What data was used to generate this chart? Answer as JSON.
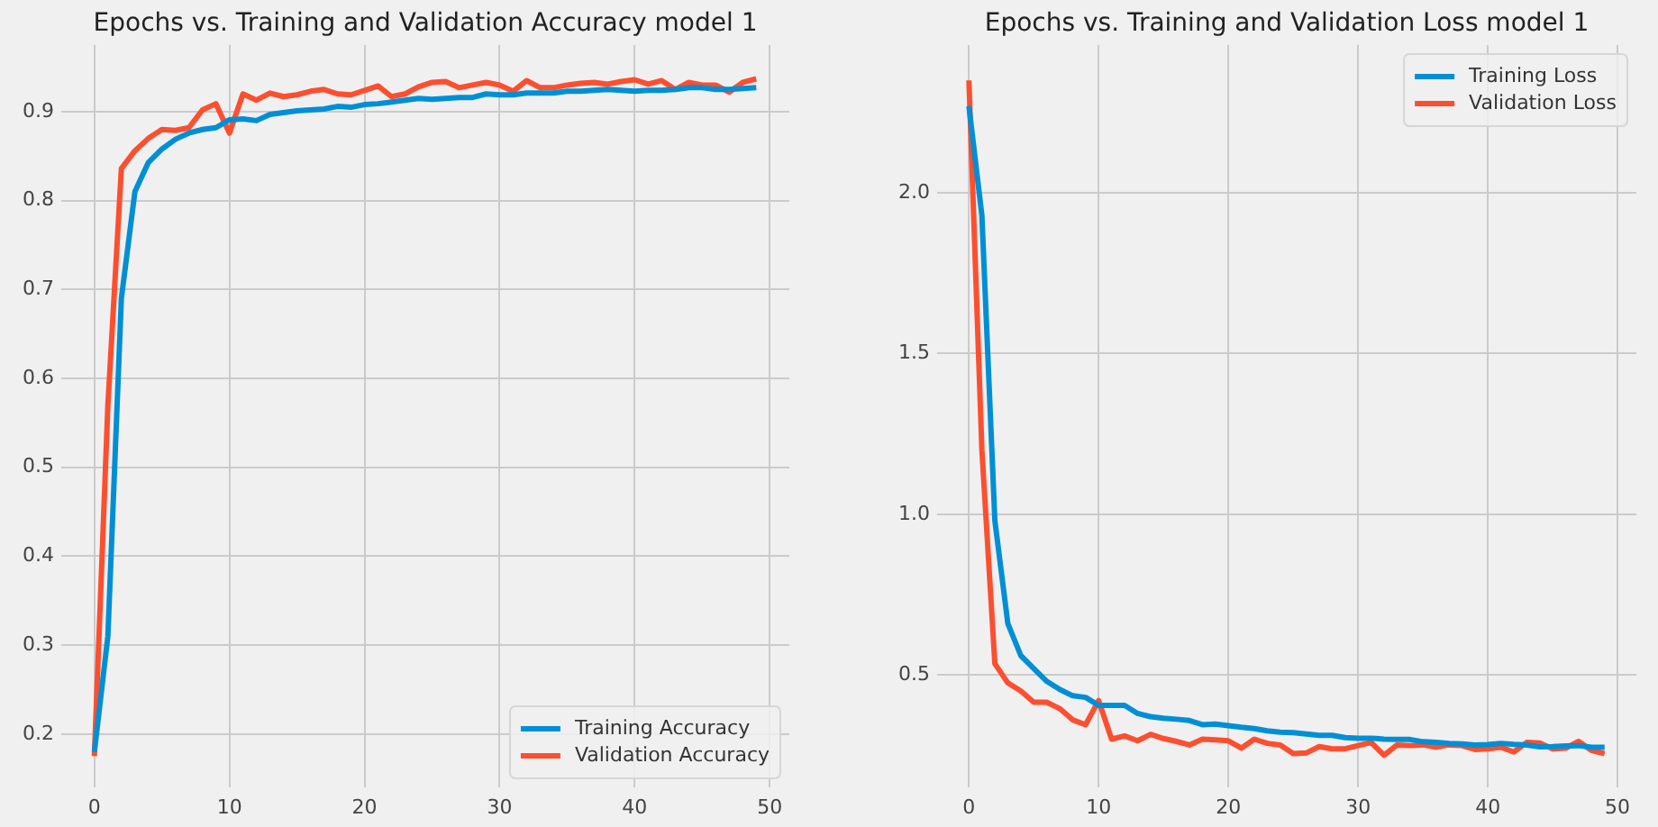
{
  "chart_data": [
    {
      "type": "line",
      "title": "Epochs vs. Training and Validation Accuracy model 1",
      "x": [
        0,
        1,
        2,
        3,
        4,
        5,
        6,
        7,
        8,
        9,
        10,
        11,
        12,
        13,
        14,
        15,
        16,
        17,
        18,
        19,
        20,
        21,
        22,
        23,
        24,
        25,
        26,
        27,
        28,
        29,
        30,
        31,
        32,
        33,
        34,
        35,
        36,
        37,
        38,
        39,
        40,
        41,
        42,
        43,
        44,
        45,
        46,
        47,
        48,
        49
      ],
      "series": [
        {
          "name": "Training Accuracy",
          "color": "#008fd5",
          "values": [
            0.18,
            0.31,
            0.69,
            0.81,
            0.843,
            0.858,
            0.869,
            0.876,
            0.88,
            0.882,
            0.891,
            0.892,
            0.89,
            0.897,
            0.899,
            0.901,
            0.902,
            0.903,
            0.906,
            0.905,
            0.908,
            0.909,
            0.911,
            0.913,
            0.915,
            0.914,
            0.915,
            0.916,
            0.916,
            0.92,
            0.919,
            0.919,
            0.921,
            0.921,
            0.921,
            0.923,
            0.923,
            0.924,
            0.925,
            0.924,
            0.923,
            0.924,
            0.924,
            0.925,
            0.927,
            0.927,
            0.925,
            0.925,
            0.926,
            0.927
          ]
        },
        {
          "name": "Validation Accuracy",
          "color": "#fc4f30",
          "values": [
            0.175,
            0.57,
            0.836,
            0.856,
            0.87,
            0.88,
            0.879,
            0.882,
            0.902,
            0.909,
            0.876,
            0.92,
            0.913,
            0.921,
            0.917,
            0.919,
            0.923,
            0.925,
            0.92,
            0.919,
            0.924,
            0.929,
            0.917,
            0.92,
            0.928,
            0.933,
            0.934,
            0.927,
            0.93,
            0.933,
            0.93,
            0.923,
            0.935,
            0.927,
            0.927,
            0.93,
            0.932,
            0.933,
            0.931,
            0.934,
            0.936,
            0.931,
            0.935,
            0.925,
            0.933,
            0.93,
            0.93,
            0.922,
            0.933,
            0.937
          ]
        }
      ],
      "xlim": [
        -2.45,
        51.45
      ],
      "ylim": [
        0.14,
        0.975
      ],
      "xticks": [
        0,
        10,
        20,
        30,
        40,
        50
      ],
      "yticks": [
        0.2,
        0.3,
        0.4,
        0.5,
        0.6,
        0.7,
        0.8,
        0.9
      ],
      "grid": true,
      "legend": "bottom right"
    },
    {
      "type": "line",
      "title": "Epochs vs. Training and Validation Loss model 1",
      "x": [
        0,
        1,
        2,
        3,
        4,
        5,
        6,
        7,
        8,
        9,
        10,
        11,
        12,
        13,
        14,
        15,
        16,
        17,
        18,
        19,
        20,
        21,
        22,
        23,
        24,
        25,
        26,
        27,
        28,
        29,
        30,
        31,
        32,
        33,
        34,
        35,
        36,
        37,
        38,
        39,
        40,
        41,
        42,
        43,
        44,
        45,
        46,
        47,
        48,
        49
      ],
      "series": [
        {
          "name": "Training Loss",
          "color": "#008fd5",
          "values": [
            2.27,
            1.93,
            0.98,
            0.66,
            0.56,
            0.52,
            0.48,
            0.455,
            0.435,
            0.43,
            0.405,
            0.405,
            0.405,
            0.38,
            0.37,
            0.365,
            0.362,
            0.358,
            0.345,
            0.347,
            0.342,
            0.337,
            0.333,
            0.326,
            0.322,
            0.32,
            0.316,
            0.312,
            0.312,
            0.305,
            0.303,
            0.303,
            0.3,
            0.299,
            0.299,
            0.292,
            0.29,
            0.287,
            0.285,
            0.282,
            0.283,
            0.287,
            0.284,
            0.282,
            0.276,
            0.277,
            0.279,
            0.28,
            0.275,
            0.275
          ]
        },
        {
          "name": "Validation Loss",
          "color": "#fc4f30",
          "values": [
            2.35,
            1.2,
            0.535,
            0.475,
            0.45,
            0.415,
            0.415,
            0.395,
            0.36,
            0.345,
            0.42,
            0.3,
            0.31,
            0.295,
            0.315,
            0.302,
            0.293,
            0.282,
            0.3,
            0.298,
            0.295,
            0.272,
            0.3,
            0.287,
            0.282,
            0.255,
            0.257,
            0.277,
            0.27,
            0.27,
            0.28,
            0.29,
            0.25,
            0.282,
            0.28,
            0.282,
            0.275,
            0.282,
            0.28,
            0.268,
            0.27,
            0.275,
            0.26,
            0.29,
            0.288,
            0.27,
            0.272,
            0.293,
            0.265,
            0.255
          ]
        }
      ],
      "xlim": [
        -2.45,
        51.45
      ],
      "ylim": [
        0.15,
        2.46
      ],
      "xticks": [
        0,
        10,
        20,
        30,
        40,
        50
      ],
      "yticks": [
        0.5,
        {
          "value": 1,
          "label": "1.0"
        },
        1.5,
        {
          "value": 2,
          "label": "2.0"
        }
      ],
      "grid": true,
      "legend": "top right"
    }
  ]
}
